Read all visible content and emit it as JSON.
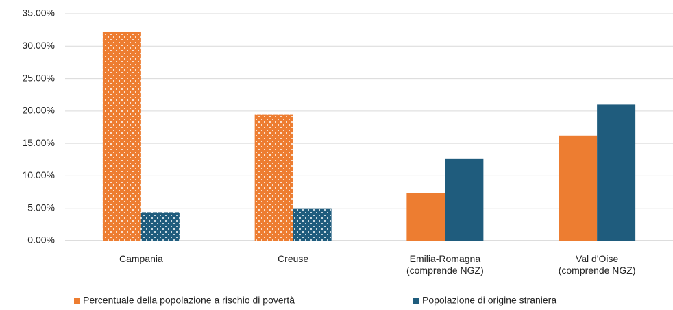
{
  "chart_data": {
    "type": "bar",
    "categories": [
      "Campania",
      "Creuse",
      "Emilia-Romagna\n(comprende NGZ)",
      "Val d'Oise\n(comprende NGZ)"
    ],
    "series": [
      {
        "name": "Percentuale della popolazione a rischio di povertà",
        "color": "#ed7d31",
        "values": [
          32.2,
          19.5,
          7.4,
          16.2
        ],
        "pattern": [
          "dots",
          "dots",
          null,
          null
        ]
      },
      {
        "name": "Popolazione di origine straniera",
        "color": "#1f5c7d",
        "values": [
          4.4,
          4.9,
          12.6,
          21.0
        ],
        "pattern": [
          "dots",
          "dots",
          null,
          null
        ]
      }
    ],
    "ylim": [
      0,
      35
    ],
    "yticks": [
      {
        "value": 0,
        "label": "0.00%"
      },
      {
        "value": 5,
        "label": "5.00%"
      },
      {
        "value": 10,
        "label": "10.00%"
      },
      {
        "value": 15,
        "label": "15.00%"
      },
      {
        "value": 20,
        "label": "20.00%"
      },
      {
        "value": 25,
        "label": "25.00%"
      },
      {
        "value": 30,
        "label": "30.00%"
      },
      {
        "value": 35,
        "label": "35.00%"
      }
    ],
    "grid": true
  }
}
